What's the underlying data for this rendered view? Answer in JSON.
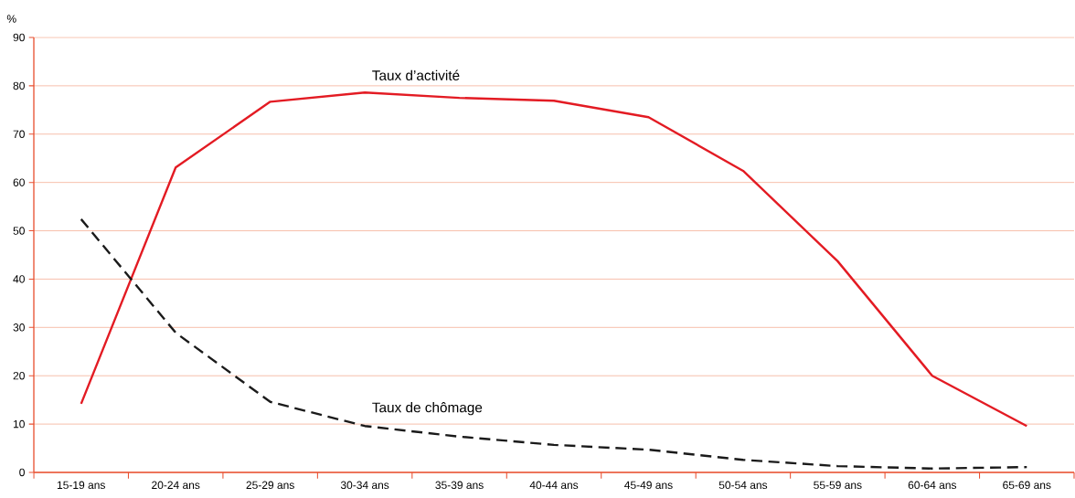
{
  "chart_data": {
    "type": "line",
    "ylabel": "%",
    "categories": [
      "15-19 ans",
      "20-24 ans",
      "25-29 ans",
      "30-34 ans",
      "35-39 ans",
      "40-44 ans",
      "45-49 ans",
      "50-54 ans",
      "55-59 ans",
      "60-64 ans",
      "65-69 ans"
    ],
    "series": [
      {
        "name": "Taux d’activité",
        "color": "#e31b23",
        "line_style": "solid",
        "values": [
          14.2,
          63.1,
          76.7,
          78.6,
          77.5,
          76.9,
          73.5,
          62.4,
          43.7,
          20.0,
          9.6
        ]
      },
      {
        "name": "Taux de chômage",
        "color": "#1a1a1a",
        "line_style": "dashed",
        "values": [
          52.4,
          28.9,
          14.6,
          9.6,
          7.4,
          5.7,
          4.7,
          2.6,
          1.3,
          0.8,
          1.1
        ]
      }
    ],
    "ylim": [
      0,
      90
    ],
    "yticks": [
      0,
      10,
      20,
      30,
      40,
      50,
      60,
      70,
      80,
      90
    ],
    "grid": "y",
    "legend": false,
    "marker": "none"
  }
}
